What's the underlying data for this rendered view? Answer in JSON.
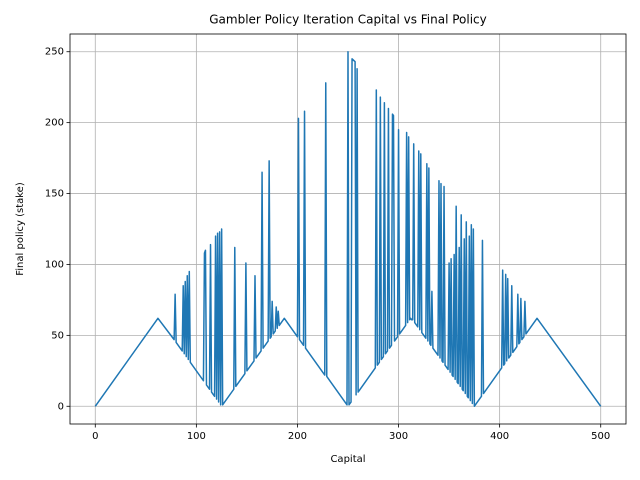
{
  "chart_data": {
    "type": "line",
    "title": "Gambler Policy Iteration Capital vs Final Policy",
    "x_label": "Capital",
    "y_label": "Final policy (stake)",
    "color": "#1f77b4",
    "grid": true,
    "xlim": [
      -25,
      525
    ],
    "ylim": [
      -12.5,
      262.5
    ],
    "xticks": [
      0,
      100,
      200,
      300,
      400,
      500
    ],
    "yticks": [
      0,
      50,
      100,
      150,
      200,
      250
    ],
    "x": [
      0,
      62,
      78,
      79,
      80,
      86,
      87,
      88,
      89,
      90,
      91,
      92,
      93,
      94,
      107,
      108,
      109,
      110,
      113,
      114,
      115,
      118,
      119,
      120,
      121,
      122,
      123,
      124,
      125,
      126,
      137,
      138,
      139,
      148,
      149,
      150,
      157,
      158,
      159,
      164,
      165,
      166,
      171,
      172,
      173,
      174,
      175,
      176,
      178,
      179,
      180,
      181,
      182,
      187,
      200,
      201,
      202,
      206,
      207,
      208,
      227,
      228,
      229,
      248,
      249,
      250,
      251,
      252,
      253,
      254,
      257,
      258,
      259,
      260,
      261,
      277,
      278,
      279,
      281,
      282,
      283,
      285,
      286,
      287,
      289,
      290,
      291,
      293,
      294,
      295,
      296,
      299,
      300,
      301,
      307,
      308,
      309,
      310,
      311,
      312,
      313,
      314,
      315,
      316,
      319,
      320,
      321,
      322,
      323,
      327,
      328,
      329,
      330,
      331,
      332,
      333,
      334,
      339,
      340,
      341,
      342,
      343,
      344,
      345,
      346,
      349,
      350,
      351,
      352,
      353,
      354,
      355,
      356,
      357,
      358,
      359,
      360,
      361,
      362,
      363,
      364,
      365,
      366,
      367,
      368,
      369,
      370,
      371,
      372,
      373,
      374,
      375,
      376,
      382,
      383,
      384,
      402,
      403,
      404,
      405,
      406,
      407,
      408,
      409,
      411,
      412,
      413,
      417,
      418,
      419,
      420,
      421,
      422,
      424,
      425,
      426,
      437,
      500
    ],
    "values": [
      0,
      62,
      47,
      79,
      45,
      39,
      85,
      37,
      88,
      35,
      92,
      33,
      95,
      31,
      18,
      108,
      110,
      15,
      12,
      114,
      10,
      7,
      120,
      5,
      122,
      3,
      123,
      1,
      125,
      1,
      12,
      112,
      14,
      23,
      101,
      25,
      32,
      92,
      34,
      39,
      165,
      41,
      46,
      173,
      48,
      49,
      74,
      51,
      53,
      70,
      55,
      67,
      57,
      62,
      49,
      203,
      47,
      43,
      208,
      41,
      22,
      228,
      21,
      2,
      1,
      250,
      1,
      2,
      3,
      245,
      243,
      8,
      238,
      10,
      11,
      27,
      223,
      29,
      31,
      218,
      33,
      35,
      214,
      37,
      39,
      210,
      41,
      43,
      206,
      205,
      46,
      49,
      195,
      51,
      57,
      193,
      59,
      190,
      61,
      62,
      61,
      61,
      185,
      59,
      56,
      180,
      54,
      178,
      52,
      48,
      171,
      46,
      168,
      44,
      43,
      81,
      41,
      36,
      159,
      34,
      157,
      32,
      31,
      155,
      29,
      26,
      101,
      24,
      104,
      22,
      21,
      107,
      19,
      141,
      17,
      16,
      112,
      14,
      135,
      12,
      11,
      118,
      9,
      130,
      7,
      6,
      120,
      4,
      128,
      2,
      125,
      0,
      1,
      7,
      117,
      9,
      27,
      96,
      29,
      30,
      93,
      32,
      90,
      34,
      36,
      85,
      38,
      42,
      79,
      44,
      45,
      76,
      47,
      49,
      74,
      51,
      62,
      0
    ]
  }
}
